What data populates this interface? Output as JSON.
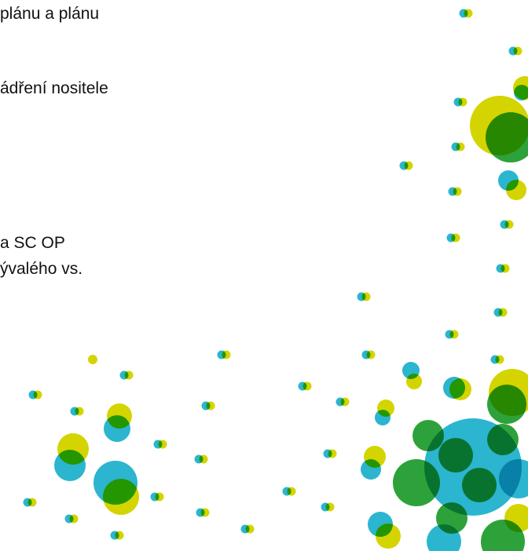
{
  "text_lines": [
    "plánu a plánu",
    "ádření nositele",
    "a SC OP",
    "ývalého vs."
  ]
}
